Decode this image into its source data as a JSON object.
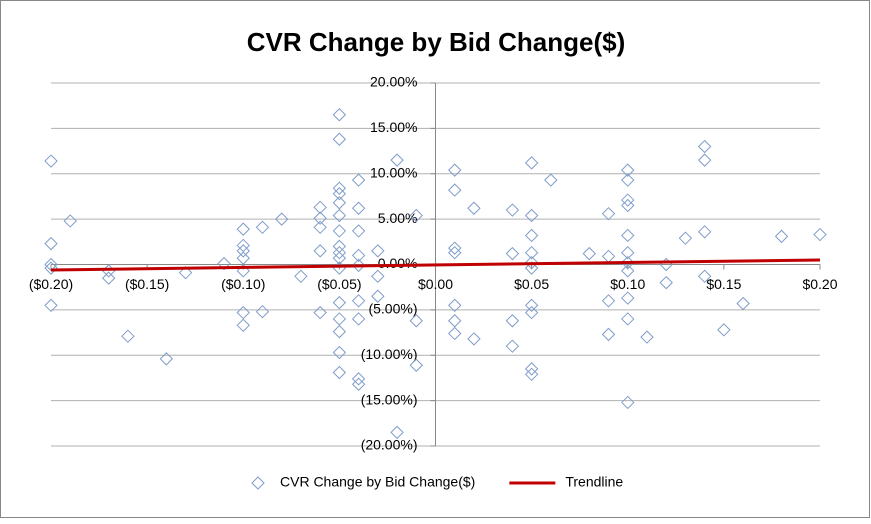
{
  "chart_data": {
    "type": "scatter",
    "title": "CVR Change by Bid Change($)",
    "xlim": [
      -0.2,
      0.2
    ],
    "xticks": [
      {
        "value": -0.2,
        "label": "($0.20)"
      },
      {
        "value": -0.15,
        "label": "($0.15)"
      },
      {
        "value": -0.1,
        "label": "($0.10)"
      },
      {
        "value": -0.05,
        "label": "($0.05)"
      },
      {
        "value": 0,
        "label": "$0.00"
      },
      {
        "value": 0.05,
        "label": "$0.05"
      },
      {
        "value": 0.1,
        "label": "$0.10"
      },
      {
        "value": 0.15,
        "label": "$0.15"
      },
      {
        "value": 0.2,
        "label": "$0.20"
      }
    ],
    "ylim": [
      -20,
      20
    ],
    "yticks": [
      {
        "value": -20,
        "label": "(20.00%)"
      },
      {
        "value": -15,
        "label": "(15.00%)"
      },
      {
        "value": -10,
        "label": "(10.00%)"
      },
      {
        "value": -5,
        "label": "(5.00%)"
      },
      {
        "value": 0,
        "label": "0.00%"
      },
      {
        "value": 5,
        "label": "5.00%"
      },
      {
        "value": 10,
        "label": "10.00%"
      },
      {
        "value": 15,
        "label": "15.00%"
      },
      {
        "value": 20,
        "label": "20.00%"
      }
    ],
    "grid": true,
    "legend": "bottom",
    "series": [
      {
        "name": "CVR Change by Bid Change($)",
        "color": "#7f9dc9",
        "style": "markers",
        "x": [
          -0.2,
          -0.2,
          -0.2,
          -0.2,
          -0.2,
          -0.19,
          -0.17,
          -0.17,
          -0.16,
          -0.14,
          -0.13,
          -0.11,
          -0.1,
          -0.1,
          -0.1,
          -0.1,
          -0.1,
          -0.1,
          -0.1,
          -0.09,
          -0.09,
          -0.08,
          -0.07,
          -0.06,
          -0.06,
          -0.06,
          -0.06,
          -0.06,
          -0.05,
          -0.05,
          -0.05,
          -0.05,
          -0.05,
          -0.05,
          -0.05,
          -0.05,
          -0.05,
          -0.05,
          -0.05,
          -0.05,
          -0.05,
          -0.05,
          -0.05,
          -0.05,
          -0.04,
          -0.04,
          -0.04,
          -0.04,
          -0.04,
          -0.04,
          -0.04,
          -0.04,
          -0.04,
          -0.03,
          -0.03,
          -0.03,
          -0.02,
          -0.02,
          -0.01,
          -0.01,
          -0.01,
          0.01,
          0.01,
          0.01,
          0.01,
          0.01,
          0.01,
          0.01,
          0.02,
          0.02,
          0.04,
          0.04,
          0.04,
          0.04,
          0.05,
          0.05,
          0.05,
          0.05,
          0.05,
          0.05,
          0.05,
          0.05,
          0.05,
          0.05,
          0.06,
          0.08,
          0.09,
          0.09,
          0.09,
          0.09,
          0.1,
          0.1,
          0.1,
          0.1,
          0.1,
          0.1,
          0.1,
          0.1,
          0.1,
          0.1,
          0.1,
          0.11,
          0.12,
          0.12,
          0.13,
          0.14,
          0.14,
          0.14,
          0.14,
          0.15,
          0.16,
          0.18,
          0.2
        ],
        "values": [
          11.4,
          2.3,
          0.0,
          -0.4,
          -4.5,
          4.8,
          -0.7,
          -1.5,
          -7.9,
          -10.4,
          -0.9,
          0.1,
          3.9,
          2.1,
          1.5,
          0.7,
          -0.7,
          -5.3,
          -6.7,
          4.1,
          -5.2,
          5.0,
          -1.3,
          6.3,
          5.1,
          4.1,
          1.5,
          -5.3,
          16.5,
          13.8,
          8.4,
          7.8,
          6.8,
          5.4,
          3.7,
          2.0,
          1.3,
          0.7,
          -0.4,
          -4.2,
          -6.0,
          -7.4,
          -9.7,
          -11.9,
          9.3,
          6.2,
          3.7,
          1.0,
          -0.1,
          -4.0,
          -6.0,
          -12.6,
          -13.2,
          1.5,
          -1.3,
          -3.5,
          11.5,
          -18.5,
          5.4,
          -6.2,
          -11.1,
          10.4,
          8.2,
          1.8,
          1.3,
          -4.5,
          -6.2,
          -7.6,
          6.2,
          -8.2,
          6.0,
          1.2,
          -6.2,
          -9.0,
          11.2,
          5.4,
          3.2,
          1.3,
          0.2,
          -0.4,
          -4.5,
          -5.3,
          -11.5,
          -12.1,
          9.3,
          1.2,
          5.6,
          0.9,
          -4.0,
          -7.7,
          10.4,
          9.3,
          7.1,
          6.5,
          3.2,
          1.3,
          0.2,
          -0.7,
          -3.7,
          -6.0,
          -15.2,
          -8.0,
          0.0,
          -2.0,
          2.9,
          13.0,
          11.5,
          3.6,
          -1.3,
          -7.2,
          -4.3,
          3.1,
          3.3
        ]
      },
      {
        "name": "Trendline",
        "color": "#c00000",
        "style": "line",
        "x": [
          -0.2,
          0.2
        ],
        "values": [
          -0.6,
          0.5
        ]
      }
    ]
  }
}
